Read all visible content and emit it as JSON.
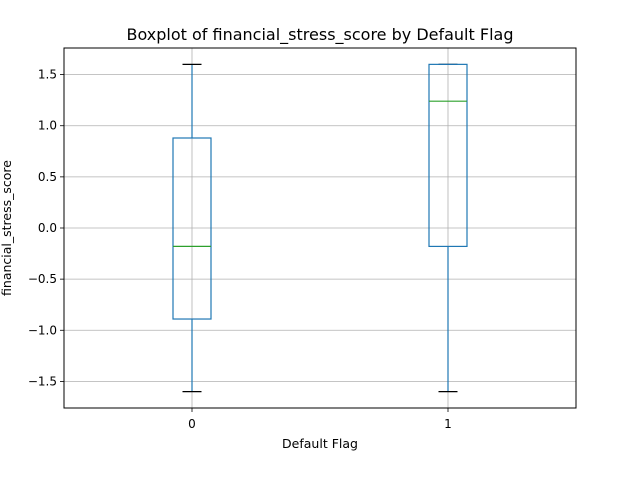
{
  "chart_data": {
    "type": "boxplot",
    "title": "Boxplot of financial_stress_score by Default Flag",
    "xlabel": "Default Flag",
    "ylabel": "financial_stress_score",
    "categories": [
      "0",
      "1"
    ],
    "boxes": [
      {
        "category": "0",
        "whisker_low": -1.6,
        "q1": -0.89,
        "median": -0.18,
        "q3": 0.88,
        "whisker_high": 1.6
      },
      {
        "category": "1",
        "whisker_low": -1.6,
        "q1": -0.18,
        "median": 1.24,
        "q3": 1.6,
        "whisker_high": 1.6
      }
    ],
    "ylim": [
      -1.76,
      1.76
    ],
    "yticks": [
      -1.5,
      -1.0,
      -0.5,
      0.0,
      0.5,
      1.0,
      1.5
    ],
    "ytick_labels": [
      "−1.5",
      "−1.0",
      "−0.5",
      "0.0",
      "0.5",
      "1.0",
      "1.5"
    ],
    "grid": true,
    "colors": {
      "box": "#1f77b4",
      "median": "#2ca02c",
      "whisker": "#1f77b4",
      "cap": "#000000",
      "grid": "#b0b0b0"
    }
  }
}
